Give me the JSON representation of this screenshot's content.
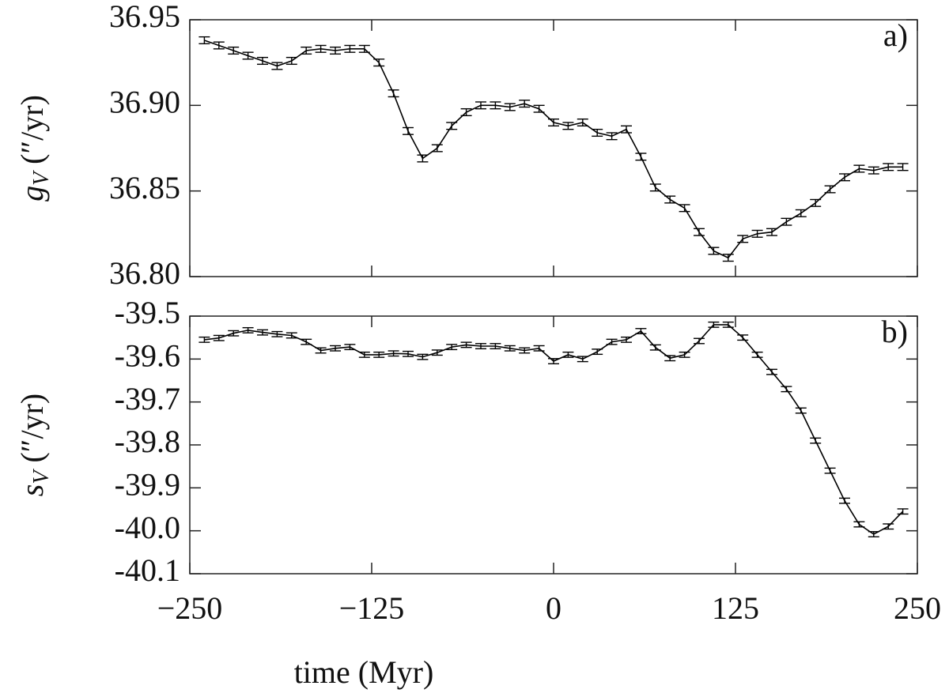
{
  "chart_data": [
    {
      "type": "line",
      "panel_label": "a)",
      "ylabel": {
        "symbol": "g",
        "subscript": "V",
        "unit": "(″/yr)"
      },
      "color": "#000000",
      "grid": false,
      "x": [
        -240,
        -230,
        -220,
        -210,
        -200,
        -190,
        -180,
        -170,
        -160,
        -150,
        -140,
        -130,
        -120,
        -110,
        -100,
        -90,
        -80,
        -70,
        -60,
        -50,
        -40,
        -30,
        -20,
        -10,
        0,
        10,
        20,
        30,
        40,
        50,
        60,
        70,
        80,
        90,
        100,
        110,
        120,
        130,
        140,
        150,
        160,
        170,
        180,
        190,
        200,
        210,
        220,
        230,
        240
      ],
      "values": [
        36.938,
        36.935,
        36.932,
        36.929,
        36.926,
        36.923,
        36.926,
        36.932,
        36.933,
        36.932,
        36.933,
        36.933,
        36.925,
        36.907,
        36.885,
        36.869,
        36.875,
        36.888,
        36.896,
        36.9,
        36.9,
        36.899,
        36.901,
        36.898,
        36.89,
        36.888,
        36.89,
        36.884,
        36.882,
        36.886,
        36.87,
        36.852,
        36.845,
        36.84,
        36.826,
        36.815,
        36.811,
        36.822,
        36.825,
        36.826,
        36.832,
        36.837,
        36.843,
        36.851,
        36.858,
        36.863,
        36.862,
        36.864,
        36.864
      ],
      "errors": [
        0.002,
        0.002,
        0.002,
        0.002,
        0.002,
        0.002,
        0.002,
        0.002,
        0.002,
        0.002,
        0.002,
        0.002,
        0.002,
        0.002,
        0.002,
        0.002,
        0.002,
        0.002,
        0.002,
        0.002,
        0.002,
        0.002,
        0.002,
        0.002,
        0.002,
        0.002,
        0.002,
        0.002,
        0.002,
        0.002,
        0.002,
        0.002,
        0.002,
        0.002,
        0.002,
        0.002,
        0.002,
        0.002,
        0.002,
        0.002,
        0.002,
        0.002,
        0.002,
        0.002,
        0.002,
        0.002,
        0.002,
        0.002,
        0.002
      ],
      "xlim": [
        -250,
        250
      ],
      "xticks": [
        -250,
        -125,
        0,
        125,
        250
      ],
      "ylim": [
        36.8,
        36.95
      ],
      "yticks": [
        {
          "value": 36.8,
          "label": "36.80"
        },
        36.85,
        {
          "value": 36.9,
          "label": "36.90"
        },
        36.95
      ]
    },
    {
      "type": "line",
      "panel_label": "b)",
      "ylabel": {
        "symbol": "s",
        "subscript": "V",
        "unit": "(″/yr)"
      },
      "xlabel": "time (Myr)",
      "color": "#000000",
      "grid": false,
      "x": [
        -240,
        -230,
        -220,
        -210,
        -200,
        -190,
        -180,
        -170,
        -160,
        -150,
        -140,
        -130,
        -120,
        -110,
        -100,
        -90,
        -80,
        -70,
        -60,
        -50,
        -40,
        -30,
        -20,
        -10,
        0,
        10,
        20,
        30,
        40,
        50,
        60,
        70,
        80,
        90,
        100,
        110,
        120,
        130,
        140,
        150,
        160,
        170,
        180,
        190,
        200,
        210,
        220,
        230,
        240
      ],
      "values": [
        -39.555,
        -39.551,
        -39.54,
        -39.533,
        -39.538,
        -39.542,
        -39.545,
        -39.56,
        -39.58,
        -39.575,
        -39.572,
        -39.59,
        -39.59,
        -39.587,
        -39.588,
        -39.595,
        -39.585,
        -39.572,
        -39.567,
        -39.57,
        -39.57,
        -39.575,
        -39.58,
        -39.575,
        -39.605,
        -39.59,
        -39.6,
        -39.583,
        -39.56,
        -39.555,
        -39.535,
        -39.573,
        -39.598,
        -39.59,
        -39.558,
        -39.52,
        -39.52,
        -39.55,
        -39.59,
        -39.63,
        -39.67,
        -39.72,
        -39.79,
        -39.86,
        -39.93,
        -39.985,
        -40.008,
        -39.99,
        -39.955
      ],
      "errors": [
        0.006,
        0.006,
        0.006,
        0.006,
        0.006,
        0.006,
        0.006,
        0.006,
        0.006,
        0.006,
        0.006,
        0.006,
        0.006,
        0.006,
        0.006,
        0.006,
        0.006,
        0.006,
        0.006,
        0.006,
        0.006,
        0.006,
        0.006,
        0.006,
        0.006,
        0.006,
        0.006,
        0.006,
        0.006,
        0.006,
        0.006,
        0.006,
        0.006,
        0.006,
        0.006,
        0.006,
        0.006,
        0.006,
        0.006,
        0.006,
        0.006,
        0.006,
        0.006,
        0.006,
        0.006,
        0.006,
        0.006,
        0.006,
        0.006
      ],
      "xlim": [
        -250,
        250
      ],
      "xticks": [
        {
          "value": -250,
          "label": "−250"
        },
        {
          "value": -125,
          "label": "−125"
        },
        0,
        125,
        250
      ],
      "ylim": [
        -40.1,
        -39.5
      ],
      "yticks": [
        -40.1,
        {
          "value": -40,
          "label": "-40.0"
        },
        -39.9,
        -39.8,
        -39.7,
        -39.6,
        -39.5
      ]
    }
  ]
}
